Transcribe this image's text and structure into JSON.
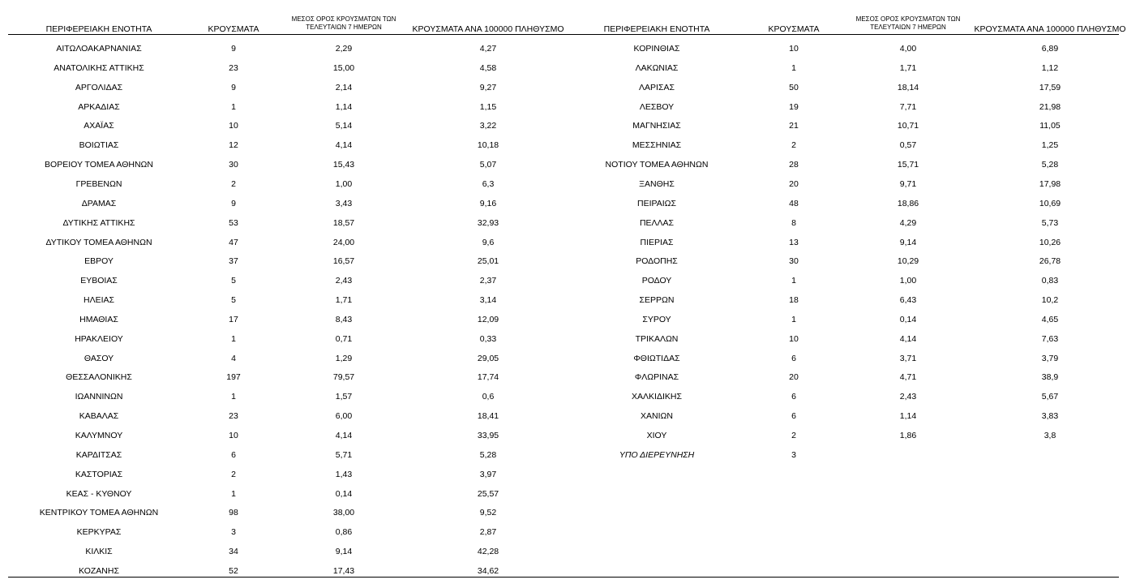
{
  "tables": [
    {
      "columns": [
        "ΠΕΡΙΦΕΡΕΙΑΚΗ ΕΝΟΤΗΤΑ",
        "ΚΡΟΥΣΜΑΤΑ",
        "ΜΕΣΟΣ ΟΡΟΣ ΚΡΟΥΣΜΑΤΩΝ ΤΩΝ ΤΕΛΕΥΤΑΙΩΝ 7 ΗΜΕΡΩΝ",
        "ΚΡΟΥΣΜΑΤΑ ΑΝΑ 100000 ΠΛΗΘΥΣΜΟ"
      ],
      "rows": [
        [
          "ΑΙΤΩΛΟΑΚΑΡΝΑΝΙΑΣ",
          "9",
          "2,29",
          "4,27"
        ],
        [
          "ΑΝΑΤΟΛΙΚΗΣ ΑΤΤΙΚΗΣ",
          "23",
          "15,00",
          "4,58"
        ],
        [
          "ΑΡΓΟΛΙΔΑΣ",
          "9",
          "2,14",
          "9,27"
        ],
        [
          "ΑΡΚΑΔΙΑΣ",
          "1",
          "1,14",
          "1,15"
        ],
        [
          "ΑΧΑΪΑΣ",
          "10",
          "5,14",
          "3,22"
        ],
        [
          "ΒΟΙΩΤΙΑΣ",
          "12",
          "4,14",
          "10,18"
        ],
        [
          "ΒΟΡΕΙΟΥ ΤΟΜΕΑ ΑΘΗΝΩΝ",
          "30",
          "15,43",
          "5,07"
        ],
        [
          "ΓΡΕΒΕΝΩΝ",
          "2",
          "1,00",
          "6,3"
        ],
        [
          "ΔΡΑΜΑΣ",
          "9",
          "3,43",
          "9,16"
        ],
        [
          "ΔΥΤΙΚΗΣ ΑΤΤΙΚΗΣ",
          "53",
          "18,57",
          "32,93"
        ],
        [
          "ΔΥΤΙΚΟΥ ΤΟΜΕΑ ΑΘΗΝΩΝ",
          "47",
          "24,00",
          "9,6"
        ],
        [
          "ΕΒΡΟΥ",
          "37",
          "16,57",
          "25,01"
        ],
        [
          "ΕΥΒΟΙΑΣ",
          "5",
          "2,43",
          "2,37"
        ],
        [
          "ΗΛΕΙΑΣ",
          "5",
          "1,71",
          "3,14"
        ],
        [
          "ΗΜΑΘΙΑΣ",
          "17",
          "8,43",
          "12,09"
        ],
        [
          "ΗΡΑΚΛΕΙΟΥ",
          "1",
          "0,71",
          "0,33"
        ],
        [
          "ΘΑΣΟΥ",
          "4",
          "1,29",
          "29,05"
        ],
        [
          "ΘΕΣΣΑΛΟΝΙΚΗΣ",
          "197",
          "79,57",
          "17,74"
        ],
        [
          "ΙΩΑΝΝΙΝΩΝ",
          "1",
          "1,57",
          "0,6"
        ],
        [
          "ΚΑΒΑΛΑΣ",
          "23",
          "6,00",
          "18,41"
        ],
        [
          "ΚΑΛΥΜΝΟΥ",
          "10",
          "4,14",
          "33,95"
        ],
        [
          "ΚΑΡΔΙΤΣΑΣ",
          "6",
          "5,71",
          "5,28"
        ],
        [
          "ΚΑΣΤΟΡΙΑΣ",
          "2",
          "1,43",
          "3,97"
        ],
        [
          "ΚΕΑΣ - ΚΥΘΝΟΥ",
          "1",
          "0,14",
          "25,57"
        ],
        [
          "ΚΕΝΤΡΙΚΟΥ ΤΟΜΕΑ ΑΘΗΝΩΝ",
          "98",
          "38,00",
          "9,52"
        ],
        [
          "ΚΕΡΚΥΡΑΣ",
          "3",
          "0,86",
          "2,87"
        ],
        [
          "ΚΙΛΚΙΣ",
          "34",
          "9,14",
          "42,28"
        ],
        [
          "ΚΟΖΑΝΗΣ",
          "52",
          "17,43",
          "34,62"
        ]
      ]
    },
    {
      "columns": [
        "ΠΕΡΙΦΕΡΕΙΑΚΗ ΕΝΟΤΗΤΑ",
        "ΚΡΟΥΣΜΑΤΑ",
        "ΜΕΣΟΣ ΟΡΟΣ ΚΡΟΥΣΜΑΤΩΝ ΤΩΝ ΤΕΛΕΥΤΑΙΩΝ 7 ΗΜΕΡΩΝ",
        "ΚΡΟΥΣΜΑΤΑ ΑΝΑ 100000 ΠΛΗΘΥΣΜΟ"
      ],
      "rows": [
        [
          "ΚΟΡΙΝΘΙΑΣ",
          "10",
          "4,00",
          "6,89"
        ],
        [
          "ΛΑΚΩΝΙΑΣ",
          "1",
          "1,71",
          "1,12"
        ],
        [
          "ΛΑΡΙΣΑΣ",
          "50",
          "18,14",
          "17,59"
        ],
        [
          "ΛΕΣΒΟΥ",
          "19",
          "7,71",
          "21,98"
        ],
        [
          "ΜΑΓΝΗΣΙΑΣ",
          "21",
          "10,71",
          "11,05"
        ],
        [
          "ΜΕΣΣΗΝΙΑΣ",
          "2",
          "0,57",
          "1,25"
        ],
        [
          "ΝΟΤΙΟΥ ΤΟΜΕΑ ΑΘΗΝΩΝ",
          "28",
          "15,71",
          "5,28"
        ],
        [
          "ΞΑΝΘΗΣ",
          "20",
          "9,71",
          "17,98"
        ],
        [
          "ΠΕΙΡΑΙΩΣ",
          "48",
          "18,86",
          "10,69"
        ],
        [
          "ΠΕΛΛΑΣ",
          "8",
          "4,29",
          "5,73"
        ],
        [
          "ΠΙΕΡΙΑΣ",
          "13",
          "9,14",
          "10,26"
        ],
        [
          "ΡΟΔΟΠΗΣ",
          "30",
          "10,29",
          "26,78"
        ],
        [
          "ΡΟΔΟΥ",
          "1",
          "1,00",
          "0,83"
        ],
        [
          "ΣΕΡΡΩΝ",
          "18",
          "6,43",
          "10,2"
        ],
        [
          "ΣΥΡΟΥ",
          "1",
          "0,14",
          "4,65"
        ],
        [
          "ΤΡΙΚΑΛΩΝ",
          "10",
          "4,14",
          "7,63"
        ],
        [
          "ΦΘΙΩΤΙΔΑΣ",
          "6",
          "3,71",
          "3,79"
        ],
        [
          "ΦΛΩΡΙΝΑΣ",
          "20",
          "4,71",
          "38,9"
        ],
        [
          "ΧΑΛΚΙΔΙΚΗΣ",
          "6",
          "2,43",
          "5,67"
        ],
        [
          "ΧΑΝΙΩΝ",
          "6",
          "1,14",
          "3,83"
        ],
        [
          "ΧΙΟΥ",
          "2",
          "1,86",
          "3,8"
        ],
        [
          "ΥΠΟ ΔΙΕΡΕΥΝΗΣΗ",
          "3"
        ]
      ]
    }
  ]
}
